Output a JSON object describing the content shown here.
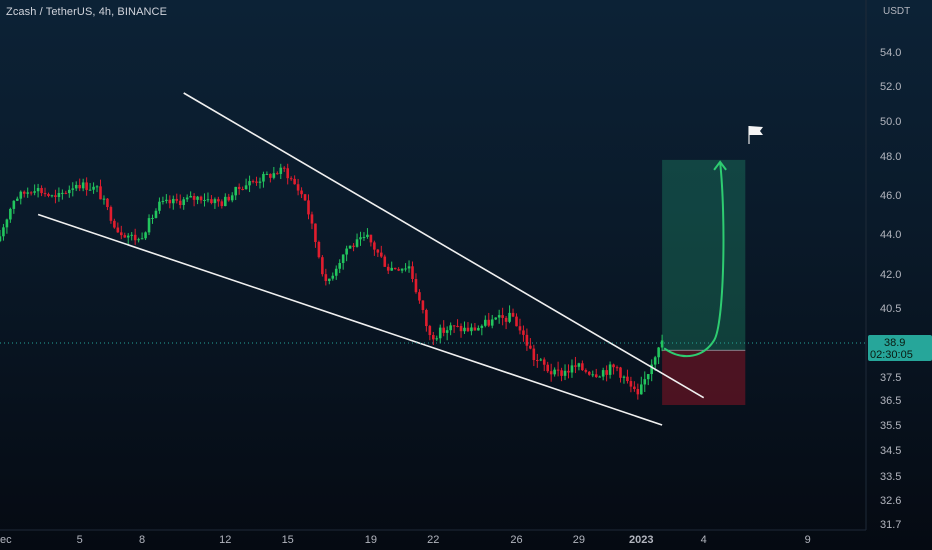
{
  "chart_data": {
    "type": "candlestick",
    "title": "Zcash / TetherUS, 4h, BINANCE",
    "y_unit": "USDT",
    "y_ticks": [
      {
        "value": 54,
        "label": "54.0"
      },
      {
        "value": 52,
        "label": "52.0"
      },
      {
        "value": 50,
        "label": "50.0"
      },
      {
        "value": 48,
        "label": "48.0"
      },
      {
        "value": 46,
        "label": "46.0"
      },
      {
        "value": 44,
        "label": "44.0"
      },
      {
        "value": 42,
        "label": "42.0"
      },
      {
        "value": 40.5,
        "label": "40.5"
      },
      {
        "value": 37.5,
        "label": "37.5"
      },
      {
        "value": 36.5,
        "label": "36.5"
      },
      {
        "value": 35.5,
        "label": "35.5"
      },
      {
        "value": 34.5,
        "label": "34.5"
      },
      {
        "value": 33.5,
        "label": "33.5"
      },
      {
        "value": 32.6,
        "label": "32.6"
      },
      {
        "value": 31.7,
        "label": "31.7"
      }
    ],
    "x_ticks": [
      {
        "label": "ec",
        "date": "2022-12-01"
      },
      {
        "label": "5",
        "date": "2022-12-05"
      },
      {
        "label": "8",
        "date": "2022-12-08"
      },
      {
        "label": "12",
        "date": "2022-12-12"
      },
      {
        "label": "15",
        "date": "2022-12-15"
      },
      {
        "label": "19",
        "date": "2022-12-19"
      },
      {
        "label": "22",
        "date": "2022-12-22"
      },
      {
        "label": "26",
        "date": "2022-12-26"
      },
      {
        "label": "29",
        "date": "2022-12-29"
      },
      {
        "label": "2023",
        "date": "2023-01-01"
      },
      {
        "label": "4",
        "date": "2023-01-04"
      },
      {
        "label": "9",
        "date": "2023-01-09"
      }
    ],
    "current_price": {
      "label": "38.9",
      "countdown": "02:30:05",
      "value": 38.9
    },
    "anchors": [
      {
        "date": "2022-12-01",
        "value": 43
      },
      {
        "date": "2022-12-02",
        "value": 45.8
      },
      {
        "date": "2022-12-03",
        "value": 46.4
      },
      {
        "date": "2022-12-04",
        "value": 45.8
      },
      {
        "date": "2022-12-05",
        "value": 46.6
      },
      {
        "date": "2022-12-06",
        "value": 46.3
      },
      {
        "date": "2022-12-07",
        "value": 44.2
      },
      {
        "date": "2022-12-08",
        "value": 43.7
      },
      {
        "date": "2022-12-09",
        "value": 45.5
      },
      {
        "date": "2022-12-11",
        "value": 45.9
      },
      {
        "date": "2022-12-12",
        "value": 45.6
      },
      {
        "date": "2022-12-13",
        "value": 46.5
      },
      {
        "date": "2022-12-14",
        "value": 46.9
      },
      {
        "date": "2022-12-15",
        "value": 47.3
      },
      {
        "date": "2022-12-16",
        "value": 45.8
      },
      {
        "date": "2022-12-17",
        "value": 41.5
      },
      {
        "date": "2022-12-18",
        "value": 43.3
      },
      {
        "date": "2022-12-19",
        "value": 43.8
      },
      {
        "date": "2022-12-20",
        "value": 42.3
      },
      {
        "date": "2022-12-21",
        "value": 42.4
      },
      {
        "date": "2022-12-22",
        "value": 39.2
      },
      {
        "date": "2022-12-23",
        "value": 39.6
      },
      {
        "date": "2022-12-24",
        "value": 39.5
      },
      {
        "date": "2022-12-25",
        "value": 39.9
      },
      {
        "date": "2022-12-26",
        "value": 40.1
      },
      {
        "date": "2022-12-27",
        "value": 38.3
      },
      {
        "date": "2022-12-28",
        "value": 37.6
      },
      {
        "date": "2022-12-29",
        "value": 37.9
      },
      {
        "date": "2022-12-30",
        "value": 37.7
      },
      {
        "date": "2022-12-31",
        "value": 37.9
      },
      {
        "date": "2023-01-01",
        "value": 36.6
      },
      {
        "date": "2023-01-02",
        "value": 38.9
      }
    ],
    "trendlines": [
      {
        "from": {
          "date": "2022-12-10",
          "value": 51.6
        },
        "to": {
          "date": "2023-01-04",
          "value": 36.6
        }
      },
      {
        "from": {
          "date": "2022-12-03",
          "value": 45.0
        },
        "to": {
          "date": "2023-01-02",
          "value": 35.5
        }
      }
    ],
    "position": {
      "start": "2023-01-02",
      "end": "2023-01-06",
      "entry": 38.6,
      "target": 47.8,
      "stop": 36.3
    },
    "colors": {
      "up": "#26a69a",
      "down": "#ef5350",
      "bull_candle": "#22c55e",
      "bear_candle": "#e11d2e",
      "arrow": "#2ecc71",
      "price_tag": "#26a69a"
    }
  }
}
